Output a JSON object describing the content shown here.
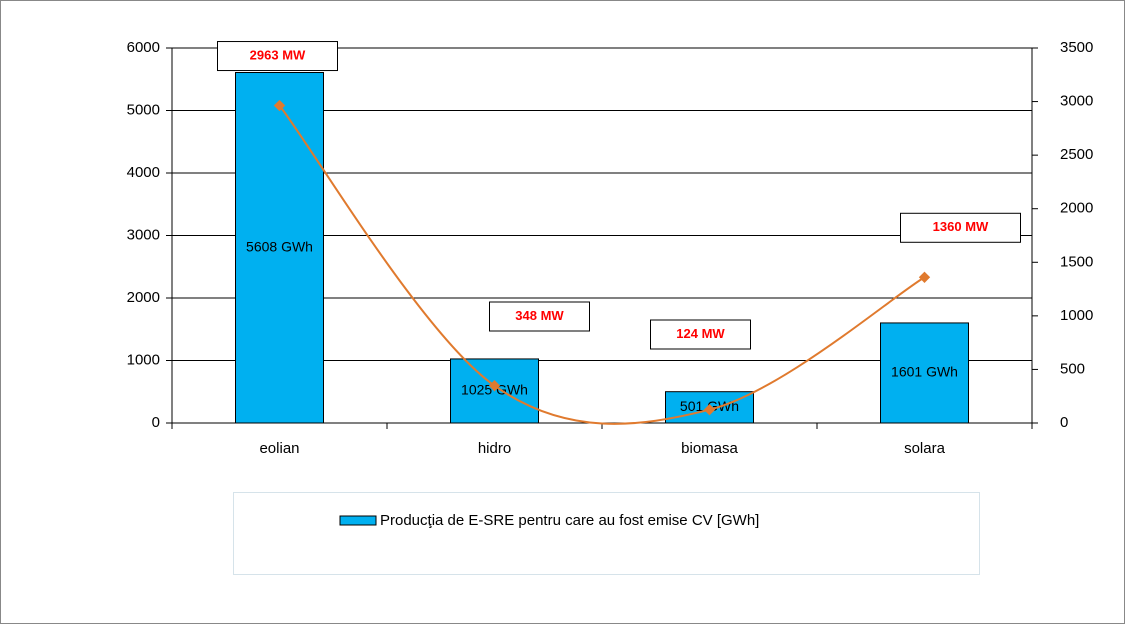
{
  "chart_data": {
    "type": "bar",
    "categories": [
      "eolian",
      "hidro",
      "biomasa",
      "solara"
    ],
    "series": [
      {
        "name": "Producţia de E-SRE pentru care au fost emise CV [GWh]",
        "type": "bar",
        "color": "#00b0f0",
        "values": [
          5608,
          1025,
          501,
          1601
        ],
        "value_labels": [
          "5608 GWh",
          "1025 GWh",
          "501 GWh",
          "1601 GWh"
        ]
      },
      {
        "type": "line",
        "axis": "y2",
        "color": "#e07a2e",
        "values": [
          2963,
          348,
          124,
          1360
        ],
        "value_labels": [
          "2963 MW",
          "348 MW",
          "124 MW",
          "1360 MW"
        ]
      }
    ],
    "ylim": [
      0,
      6000
    ],
    "yticks": [
      0,
      1000,
      2000,
      3000,
      4000,
      5000,
      6000
    ],
    "y2lim": [
      0,
      3500
    ],
    "y2ticks": [
      0,
      500,
      1000,
      1500,
      2000,
      2500,
      3000,
      3500
    ],
    "grid": true,
    "legend": "bottom"
  }
}
